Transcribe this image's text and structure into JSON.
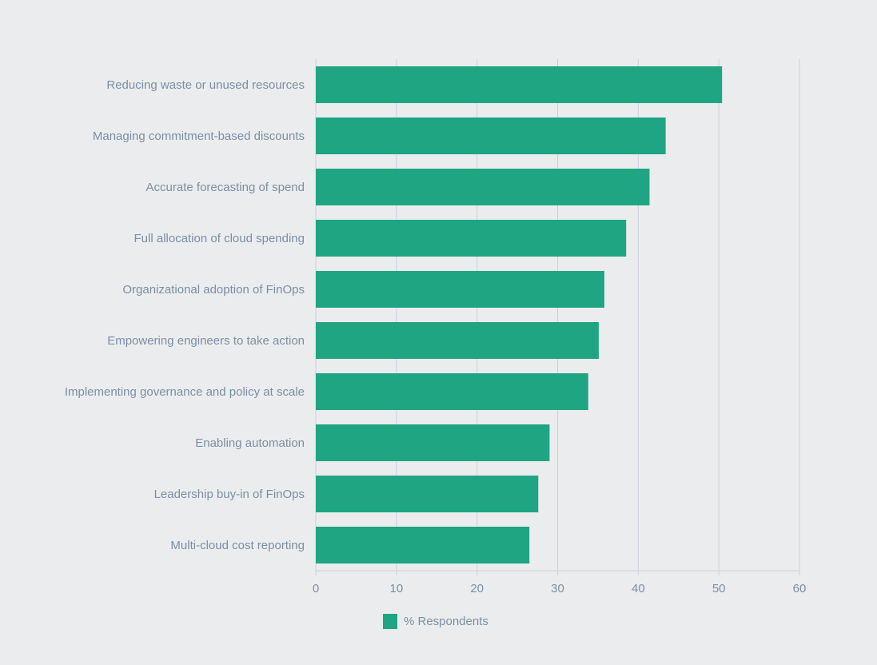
{
  "chart_data": {
    "type": "bar",
    "orientation": "horizontal",
    "categories": [
      "Reducing waste or unused resources",
      "Managing commitment-based discounts",
      "Accurate forecasting of spend",
      "Full allocation of cloud spending",
      "Organizational adoption of FinOps",
      "Empowering engineers to take action",
      "Implementing governance and policy at scale",
      "Enabling automation",
      "Leadership buy-in of FinOps",
      "Multi-cloud cost reporting"
    ],
    "series": [
      {
        "name": "% Respondents",
        "values": [
          50.4,
          43.4,
          41.4,
          38.5,
          35.8,
          35.1,
          33.8,
          29.0,
          27.6,
          26.5
        ]
      }
    ],
    "x_ticks": [
      "0",
      "10",
      "20",
      "30",
      "40",
      "50",
      "60"
    ],
    "xlim": [
      0,
      60
    ],
    "xlabel": "",
    "ylabel": "",
    "grid": true,
    "legend_position": "bottom",
    "colors": {
      "bar": "#1fa582",
      "grid": "#ccd1dc",
      "label": "#7b8fa6",
      "background": "#ebeced"
    }
  }
}
